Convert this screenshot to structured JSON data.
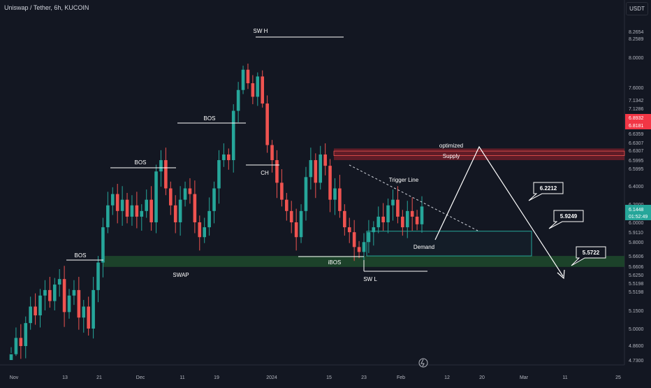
{
  "header": {
    "symbol": "Uniswap / Tether, 6h, KUCOIN",
    "currency": "USDT"
  },
  "colors": {
    "background": "#131722",
    "bull": "#26a69a",
    "bear": "#ef5350",
    "supply_zone": "#7a1f2a",
    "demand_zone": "#26a69a",
    "swap_zone": "#1f4a2b",
    "annotation": "#ffffff",
    "current_price": "#26a69a",
    "highlight_price": "#f23645"
  },
  "chart_data": {
    "type": "candlestick",
    "pair": "UNI/USDT",
    "timeframe": "6h",
    "x_ticks": [
      "Nov",
      "13",
      "21",
      "Dec",
      "11",
      "19",
      "2024",
      "15",
      "23",
      "Feb",
      "12",
      "20",
      "Mar",
      "11",
      "25"
    ],
    "y_ticks": [
      "8.2654",
      "8.2589",
      "8.0000",
      "7.6000",
      "7.1342",
      "7.1286",
      "6.6359",
      "6.6307",
      "6.6307",
      "6.5995",
      "6.5995",
      "6.4000",
      "6.2000",
      "6.0000",
      "5.9110",
      "5.8000",
      "5.6606",
      "5.6606",
      "5.6250",
      "5.5198",
      "5.5198",
      "5.1500",
      "5.0000",
      "4.8600",
      "4.7300"
    ],
    "highlighted_prices": [
      {
        "label": "6.8932",
        "color": "#f23645"
      },
      {
        "label": "6.8181",
        "color": "#f23645"
      }
    ],
    "current_price": {
      "price": "6.1448",
      "countdown": "01:52:49"
    },
    "zones": [
      {
        "name": "optimized Supply",
        "label_top": "optimized",
        "label_bottom": "Supply",
        "price_from": 6.55,
        "price_to": 6.66
      },
      {
        "name": "Demand",
        "label": "Demand",
        "price_from": 5.66,
        "price_to": 5.91
      },
      {
        "name": "SWAP",
        "label": "SWAP",
        "price_from": 5.56,
        "price_to": 5.66
      }
    ],
    "structure_labels": [
      "BOS",
      "BOS",
      "BOS",
      "SW H",
      "CH",
      "iBOS",
      "SW L"
    ],
    "trigger_line_label": "Trigger Line",
    "targets": [
      "6.2212",
      "5.9249",
      "5.5722"
    ],
    "series": {
      "closes": [
        4.78,
        4.92,
        4.85,
        5.05,
        5.2,
        5.12,
        5.3,
        5.35,
        5.25,
        5.4,
        5.45,
        5.15,
        5.3,
        5.35,
        5.1,
        5.2,
        5.0,
        5.35,
        5.6,
        5.95,
        6.15,
        6.25,
        6.1,
        6.2,
        6.05,
        6.15,
        6.05,
        6.1,
        6.2,
        6.0,
        6.45,
        6.55,
        6.3,
        6.15,
        6.0,
        6.2,
        6.3,
        6.25,
        6.0,
        5.85,
        5.95,
        6.1,
        6.3,
        6.55,
        6.6,
        6.55,
        7.1,
        7.4,
        7.7,
        7.5,
        7.3,
        7.6,
        7.2,
        6.7,
        6.55,
        6.35,
        6.2,
        6.1,
        6.0,
        5.85,
        6.1,
        6.4,
        6.55,
        6.35,
        6.6,
        6.5,
        6.2,
        6.3,
        6.1,
        5.95,
        5.9,
        5.75,
        5.7,
        5.8,
        5.9,
        5.95,
        6.05,
        6.0,
        6.15,
        6.2,
        6.05,
        5.95,
        6.1,
        6.05,
        5.98,
        6.14
      ]
    }
  },
  "watermark": "tradingview-logo"
}
